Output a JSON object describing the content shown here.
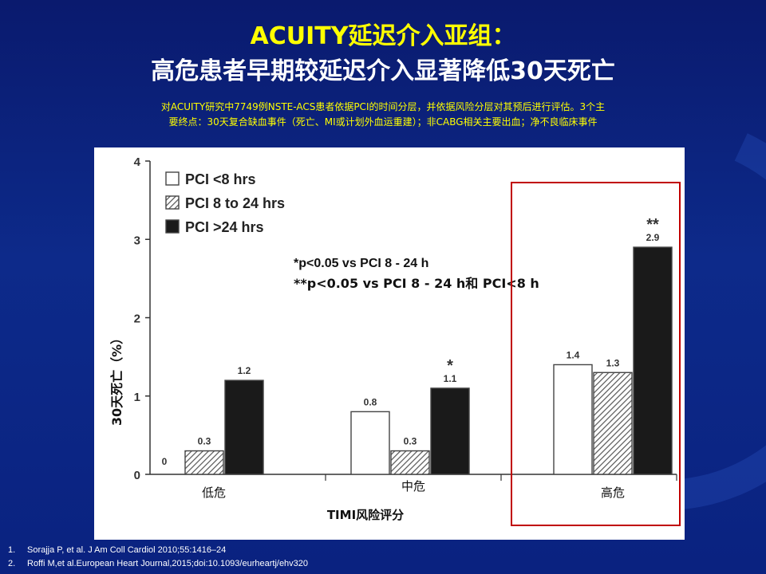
{
  "slide": {
    "title_line1": "ACUITY延迟介入亚组：",
    "title_line2": "高危患者早期较延迟介入显著降低30天死亡",
    "subtitle_line1": "对ACUITY研究中7749例NSTE-ACS患者依据PCI的时间分层，并依据风险分层对其预后进行评估。3个主",
    "subtitle_line2": "要终点：30天复合缺血事件（死亡、MI或计划外血运重建）；非CABG相关主要出血；净不良临床事件"
  },
  "chart_data": {
    "type": "bar",
    "xlabel": "TIMI风险评分",
    "ylabel": "30天死亡（%）",
    "ylim": [
      0,
      4
    ],
    "yticks": [
      "0",
      "1",
      "2",
      "3",
      "4"
    ],
    "categories": [
      "低危",
      "中危",
      "高危"
    ],
    "series": [
      {
        "name": "PCI <8 hrs",
        "pattern": "white",
        "values": [
          0,
          0.8,
          1.4
        ],
        "labels": [
          "0",
          "0.8",
          "1.4"
        ]
      },
      {
        "name": "PCI 8 to 24 hrs",
        "pattern": "hatched",
        "values": [
          0.3,
          0.3,
          1.3
        ],
        "labels": [
          "0.3",
          "0.3",
          "1.3"
        ]
      },
      {
        "name": "PCI >24 hrs",
        "pattern": "black",
        "values": [
          1.2,
          1.1,
          2.9
        ],
        "labels": [
          "1.2",
          "1.1",
          "2.9"
        ]
      }
    ],
    "significance": [
      {
        "category": 1,
        "series": 2,
        "mark": "*"
      },
      {
        "category": 2,
        "series": 2,
        "mark": "**"
      }
    ],
    "annotations": {
      "note1": "*p<0.05 vs PCI  8 - 24 h",
      "note2": "**p<0.05 vs PCI  8 - 24 h和 PCI<8 h"
    },
    "highlight_category": 2,
    "highlight_color": "#c00000",
    "legend_position": "top-left",
    "grid": false
  },
  "references": [
    {
      "num": "1.",
      "text": "Sorajja P, et al. J Am Coll Cardiol 2010;55:1416–24"
    },
    {
      "num": "2.",
      "text": "Roffi M,et al.European Heart Journal,2015;doi:10.1093/eurheartj/ehv320"
    }
  ]
}
